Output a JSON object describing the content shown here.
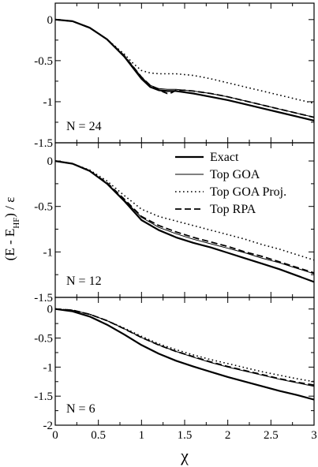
{
  "chart_data": {
    "type": "line",
    "xlabel": "χ",
    "ylabel": "(E - E",
    "ylabel_sub": "HF",
    "ylabel_tail": ") / ε",
    "xlim": [
      0,
      3
    ],
    "x_ticks": [
      "0",
      "0.5",
      "1",
      "1.5",
      "2",
      "2.5",
      "3"
    ],
    "legend_position": "top-right of middle panel",
    "legend": [
      {
        "label": "Exact",
        "style": "thick-solid"
      },
      {
        "label": "Top GOA",
        "style": "thin-solid"
      },
      {
        "label": "Top GOA Proj.",
        "style": "dotted"
      },
      {
        "label": "Top RPA",
        "style": "dashed"
      }
    ],
    "panels": [
      {
        "label": "N = 24",
        "ylim": [
          -1.5,
          0.2
        ],
        "y_ticks": [
          "0",
          "-0.5",
          "-1",
          "-1.5"
        ],
        "y_tick_values": [
          0,
          -0.5,
          -1,
          -1.5
        ],
        "series": [
          {
            "name": "Exact",
            "style": "thick-solid",
            "x": [
              0,
              0.2,
              0.4,
              0.6,
              0.8,
              1.0,
              1.1,
              1.2,
              1.3,
              1.4,
              1.6,
              1.8,
              2.0,
              2.2,
              2.4,
              2.6,
              2.8,
              3.0
            ],
            "y": [
              0,
              -0.02,
              -0.1,
              -0.24,
              -0.45,
              -0.72,
              -0.82,
              -0.86,
              -0.87,
              -0.87,
              -0.9,
              -0.94,
              -0.98,
              -1.03,
              -1.08,
              -1.13,
              -1.18,
              -1.23
            ]
          },
          {
            "name": "Top GOA",
            "style": "thin-solid",
            "x": [
              0,
              0.2,
              0.4,
              0.6,
              0.8,
              1.0,
              1.1,
              1.2,
              1.3,
              1.4,
              1.6,
              1.8,
              2.0,
              2.2,
              2.4,
              2.6,
              2.8,
              3.0
            ],
            "y": [
              0,
              -0.02,
              -0.1,
              -0.24,
              -0.44,
              -0.7,
              -0.8,
              -0.84,
              -0.85,
              -0.85,
              -0.87,
              -0.9,
              -0.94,
              -0.99,
              -1.04,
              -1.09,
              -1.14,
              -1.19
            ]
          },
          {
            "name": "Top GOA Proj.",
            "style": "dotted",
            "x": [
              0,
              0.2,
              0.4,
              0.6,
              0.8,
              0.9,
              1.0,
              1.1,
              1.2,
              1.4,
              1.6,
              1.8,
              2.0,
              2.2,
              2.4,
              2.6,
              2.8,
              3.0
            ],
            "y": [
              0,
              -0.02,
              -0.1,
              -0.24,
              -0.42,
              -0.53,
              -0.62,
              -0.65,
              -0.66,
              -0.66,
              -0.68,
              -0.72,
              -0.77,
              -0.82,
              -0.87,
              -0.92,
              -0.97,
              -1.02
            ]
          },
          {
            "name": "Top RPA",
            "style": "dashed",
            "x": [
              0,
              0.2,
              0.4,
              0.6,
              0.8,
              1.0,
              1.1,
              1.2,
              1.25,
              1.3,
              1.35,
              1.4,
              1.5,
              1.6,
              1.8,
              2.0,
              2.2,
              2.4,
              2.6,
              2.8,
              3.0
            ],
            "y": [
              0,
              -0.02,
              -0.1,
              -0.24,
              -0.44,
              -0.7,
              -0.8,
              -0.85,
              -0.88,
              -0.9,
              -0.89,
              -0.86,
              -0.86,
              -0.87,
              -0.9,
              -0.94,
              -0.99,
              -1.04,
              -1.09,
              -1.14,
              -1.19
            ]
          }
        ]
      },
      {
        "label": "N = 12",
        "ylim": [
          -1.5,
          0.2
        ],
        "y_ticks": [
          "0",
          "-0.5",
          "-1",
          "-1.5"
        ],
        "y_tick_values": [
          0,
          -0.5,
          -1,
          -1.5
        ],
        "series": [
          {
            "name": "Exact",
            "style": "thick-solid",
            "x": [
              0,
              0.2,
              0.4,
              0.6,
              0.8,
              1.0,
              1.2,
              1.4,
              1.6,
              1.8,
              2.0,
              2.2,
              2.4,
              2.6,
              2.8,
              3.0
            ],
            "y": [
              0,
              -0.03,
              -0.11,
              -0.25,
              -0.44,
              -0.65,
              -0.76,
              -0.84,
              -0.9,
              -0.95,
              -1.01,
              -1.07,
              -1.13,
              -1.19,
              -1.26,
              -1.33
            ]
          },
          {
            "name": "Top GOA",
            "style": "thin-solid",
            "x": [
              0,
              0.2,
              0.4,
              0.6,
              0.8,
              1.0,
              1.2,
              1.4,
              1.6,
              1.8,
              2.0,
              2.2,
              2.4,
              2.6,
              2.8,
              3.0
            ],
            "y": [
              0,
              -0.03,
              -0.11,
              -0.25,
              -0.43,
              -0.62,
              -0.73,
              -0.8,
              -0.86,
              -0.91,
              -0.96,
              -1.01,
              -1.07,
              -1.12,
              -1.18,
              -1.24
            ]
          },
          {
            "name": "Top GOA Proj.",
            "style": "dotted",
            "x": [
              0,
              0.2,
              0.4,
              0.6,
              0.8,
              1.0,
              1.2,
              1.4,
              1.6,
              1.8,
              2.0,
              2.2,
              2.4,
              2.6,
              2.8,
              3.0
            ],
            "y": [
              0,
              -0.03,
              -0.1,
              -0.22,
              -0.38,
              -0.53,
              -0.61,
              -0.66,
              -0.71,
              -0.76,
              -0.81,
              -0.86,
              -0.92,
              -0.97,
              -1.03,
              -1.09
            ]
          },
          {
            "name": "Top RPA",
            "style": "dashed",
            "x": [
              0,
              0.2,
              0.4,
              0.6,
              0.8,
              1.0,
              1.2,
              1.4,
              1.6,
              1.8,
              2.0,
              2.2,
              2.4,
              2.6,
              2.8,
              3.0
            ],
            "y": [
              0,
              -0.03,
              -0.11,
              -0.24,
              -0.42,
              -0.61,
              -0.71,
              -0.78,
              -0.84,
              -0.89,
              -0.94,
              -1.0,
              -1.05,
              -1.11,
              -1.17,
              -1.23
            ]
          }
        ]
      },
      {
        "label": "N = 6",
        "ylim": [
          -2.0,
          0.2
        ],
        "y_ticks": [
          "0",
          "-0.5",
          "-1",
          "-1.5",
          "-2"
        ],
        "y_tick_values": [
          0,
          -0.5,
          -1,
          -1.5,
          -2
        ],
        "series": [
          {
            "name": "Exact",
            "style": "thick-solid",
            "x": [
              0,
              0.2,
              0.4,
              0.6,
              0.8,
              1.0,
              1.2,
              1.4,
              1.6,
              1.8,
              2.0,
              2.2,
              2.4,
              2.6,
              2.8,
              3.0
            ],
            "y": [
              0,
              -0.04,
              -0.13,
              -0.27,
              -0.44,
              -0.62,
              -0.77,
              -0.89,
              -0.99,
              -1.08,
              -1.17,
              -1.25,
              -1.33,
              -1.41,
              -1.48,
              -1.56
            ]
          },
          {
            "name": "Top GOA",
            "style": "thin-solid",
            "x": [
              0,
              0.2,
              0.4,
              0.6,
              0.8,
              1.0,
              1.2,
              1.4,
              1.6,
              1.8,
              2.0,
              2.2,
              2.4,
              2.6,
              2.8,
              3.0
            ],
            "y": [
              0,
              -0.02,
              -0.09,
              -0.2,
              -0.34,
              -0.49,
              -0.62,
              -0.73,
              -0.83,
              -0.92,
              -1.0,
              -1.07,
              -1.14,
              -1.21,
              -1.27,
              -1.33
            ]
          },
          {
            "name": "Top GOA Proj.",
            "style": "dotted",
            "x": [
              0,
              0.2,
              0.4,
              0.6,
              0.8,
              1.0,
              1.2,
              1.4,
              1.6,
              1.8,
              2.0,
              2.2,
              2.4,
              2.6,
              2.8,
              3.0
            ],
            "y": [
              0,
              -0.02,
              -0.09,
              -0.2,
              -0.33,
              -0.47,
              -0.6,
              -0.7,
              -0.79,
              -0.87,
              -0.94,
              -1.01,
              -1.08,
              -1.14,
              -1.2,
              -1.25
            ]
          },
          {
            "name": "Top RPA",
            "style": "dashed",
            "x": [
              0,
              0.2,
              0.4,
              0.6,
              0.8,
              1.0,
              1.2,
              1.4,
              1.6,
              1.8,
              2.0,
              2.2,
              2.4,
              2.6,
              2.8,
              3.0
            ],
            "y": [
              0,
              -0.02,
              -0.09,
              -0.2,
              -0.34,
              -0.49,
              -0.62,
              -0.73,
              -0.82,
              -0.91,
              -0.99,
              -1.06,
              -1.13,
              -1.2,
              -1.26,
              -1.31
            ]
          }
        ]
      }
    ]
  }
}
